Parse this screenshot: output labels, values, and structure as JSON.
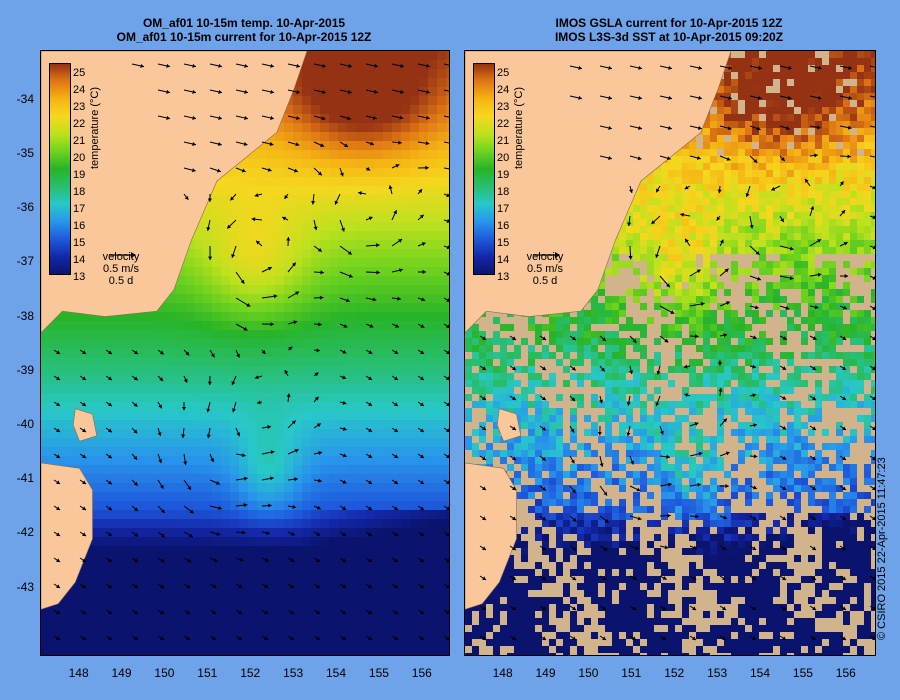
{
  "titles": {
    "left": [
      "OM_af01 10-15m temp. 10-Apr-2015",
      "OM_af01 10-15m current for 10-Apr-2015 12Z"
    ],
    "right": [
      "IMOS GSLA current for 10-Apr-2015 12Z",
      "IMOS L3S-3d SST at 10-Apr-2015 09:20Z"
    ]
  },
  "axes": {
    "y_ticks": [
      "-34",
      "-35",
      "-36",
      "-37",
      "-38",
      "-39",
      "-40",
      "-41",
      "-42",
      "-43"
    ],
    "x_ticks": [
      "148",
      "149",
      "150",
      "151",
      "152",
      "153",
      "154",
      "155",
      "156"
    ]
  },
  "colorbar": {
    "labels": [
      "25",
      "24",
      "23",
      "22",
      "21",
      "20",
      "19",
      "18",
      "17",
      "16",
      "15",
      "14",
      "13"
    ],
    "title": "temperature (°C)"
  },
  "velocity_legend": {
    "title": "velocity",
    "speed": "0.5 m/s",
    "duration": "0.5 d"
  },
  "copyright": "© CSIRO 2015   22-Apr-2015 11:47:23",
  "colors": {
    "background": "#6ea3e9",
    "land": "#f9c79a",
    "cloud_mask": "#d2b48c",
    "arrow": "#000000"
  },
  "map_data": {
    "lon_range": [
      147.1,
      156.6
    ],
    "lat_range": [
      -43.9,
      -33.1
    ],
    "temperature_range": [
      13,
      25
    ]
  }
}
